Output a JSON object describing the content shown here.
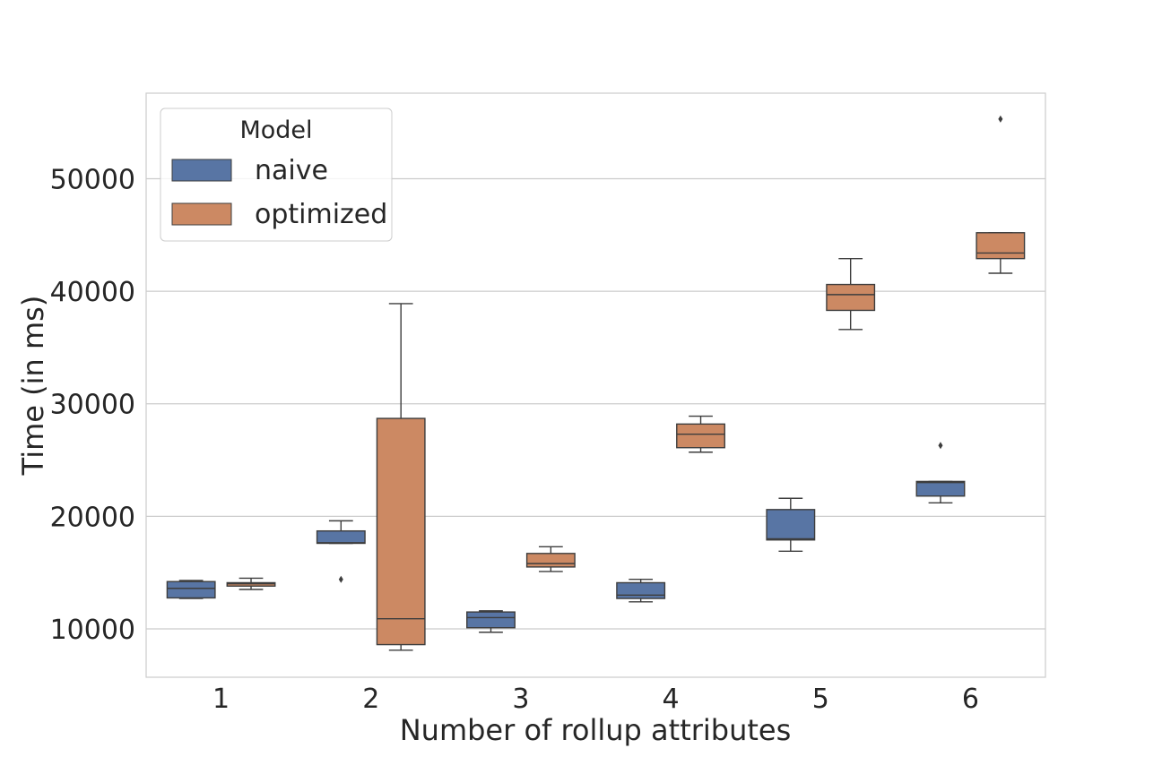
{
  "chart_data": {
    "type": "box",
    "xlabel": "Number of rollup attributes",
    "ylabel": "Time (in ms)",
    "categories": [
      "1",
      "2",
      "3",
      "4",
      "5",
      "6"
    ],
    "yticks": [
      10000,
      20000,
      30000,
      40000,
      50000
    ],
    "ylim": [
      5700,
      57600
    ],
    "grid": true,
    "legend": {
      "title": "Model",
      "placement": "top-left",
      "entries": [
        "naive",
        "optimized"
      ]
    },
    "colors": {
      "naive": "#5875a4",
      "optimized": "#cc8963",
      "line": "#3d3d3d",
      "grid": "#cccccc",
      "frame": "#cccccc"
    },
    "series": [
      {
        "name": "naive",
        "boxes": [
          {
            "whisker_low": 12700,
            "q1": 12750,
            "median": 13600,
            "q3": 14200,
            "whisker_high": 14300,
            "outliers": []
          },
          {
            "whisker_low": 17600,
            "q1": 17600,
            "median": 17650,
            "q3": 18700,
            "whisker_high": 19600,
            "outliers": [
              14400
            ]
          },
          {
            "whisker_low": 9700,
            "q1": 10100,
            "median": 11000,
            "q3": 11500,
            "whisker_high": 11600,
            "outliers": []
          },
          {
            "whisker_low": 12400,
            "q1": 12700,
            "median": 13000,
            "q3": 14100,
            "whisker_high": 14400,
            "outliers": []
          },
          {
            "whisker_low": 16900,
            "q1": 17900,
            "median": 18000,
            "q3": 20600,
            "whisker_high": 21600,
            "outliers": []
          },
          {
            "whisker_low": 21200,
            "q1": 21800,
            "median": 23000,
            "q3": 23100,
            "whisker_high": 23100,
            "outliers": [
              26300
            ]
          }
        ]
      },
      {
        "name": "optimized",
        "boxes": [
          {
            "whisker_low": 13500,
            "q1": 13800,
            "median": 14000,
            "q3": 14100,
            "whisker_high": 14500,
            "outliers": []
          },
          {
            "whisker_low": 8100,
            "q1": 8600,
            "median": 10900,
            "q3": 28700,
            "whisker_high": 38900,
            "outliers": []
          },
          {
            "whisker_low": 15100,
            "q1": 15500,
            "median": 15800,
            "q3": 16700,
            "whisker_high": 17300,
            "outliers": []
          },
          {
            "whisker_low": 25700,
            "q1": 26100,
            "median": 27300,
            "q3": 28200,
            "whisker_high": 28900,
            "outliers": []
          },
          {
            "whisker_low": 36600,
            "q1": 38300,
            "median": 39700,
            "q3": 40600,
            "whisker_high": 42900,
            "outliers": []
          },
          {
            "whisker_low": 41600,
            "q1": 42900,
            "median": 43400,
            "q3": 45200,
            "whisker_high": 45200,
            "outliers": [
              55300
            ]
          }
        ]
      }
    ]
  }
}
